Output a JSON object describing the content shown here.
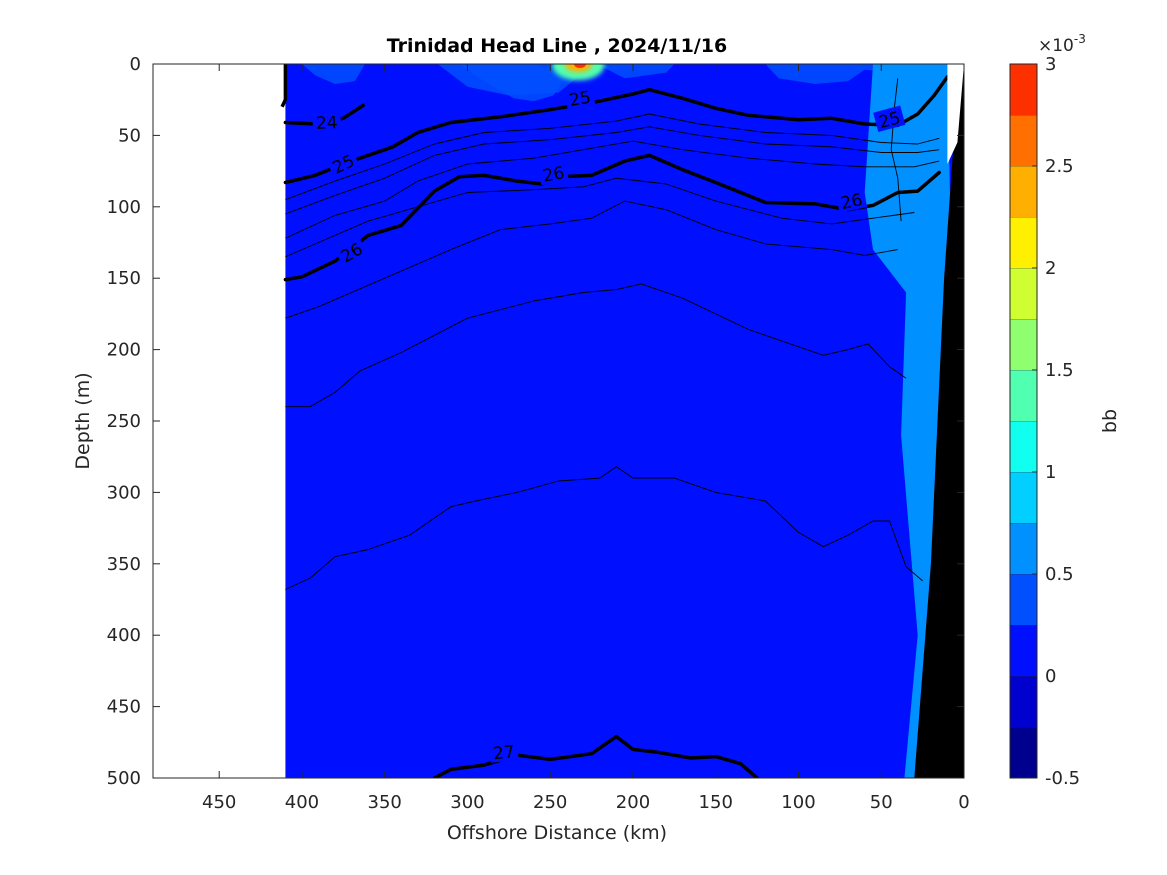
{
  "chart_data": {
    "type": "heatmap",
    "subtype": "filled-contour section with density contour overlay",
    "title": "Trinidad Head Line , 2024/11/16",
    "xlabel": "Offshore Distance (km)",
    "ylabel": "Depth (m)",
    "xlim": [
      490,
      0
    ],
    "x_reversed": true,
    "ylim": [
      0,
      500
    ],
    "y_reversed": true,
    "xticks": [
      "450",
      "400",
      "350",
      "300",
      "250",
      "200",
      "150",
      "100",
      "50",
      "0"
    ],
    "yticks": [
      "0",
      "50",
      "100",
      "150",
      "200",
      "250",
      "300",
      "350",
      "400",
      "450",
      "500"
    ],
    "grid": false,
    "colorbar": {
      "label": "bb",
      "exponent_label": "×10",
      "exponent_power": "-3",
      "scale": 0.001,
      "range": [
        -0.5,
        3
      ],
      "ticks": [
        "-0.5",
        "0",
        "0.5",
        "1",
        "1.5",
        "2",
        "2.5",
        "3"
      ],
      "levels": [
        -0.5,
        -0.25,
        0,
        0.25,
        0.5,
        0.75,
        1,
        1.25,
        1.5,
        1.75,
        2,
        2.25,
        2.5,
        2.75,
        3
      ],
      "colors": [
        "#00008f",
        "#0000cf",
        "#0010ff",
        "#0050ff",
        "#0090ff",
        "#00cfff",
        "#10ffef",
        "#50ffaf",
        "#90ff6f",
        "#cfff30",
        "#ffef00",
        "#ffaf00",
        "#ff7000",
        "#ff3000",
        "#ef0000",
        "#af0000"
      ]
    },
    "data_extent_km": [
      0,
      410
    ],
    "field_regions": [
      {
        "label": "background",
        "value_range": [
          0,
          0.25
        ]
      },
      {
        "label": "near-surface patches",
        "value_range": [
          0.25,
          0.5
        ]
      },
      {
        "label": "inshore band",
        "value_range": [
          0.5,
          0.75
        ]
      },
      {
        "label": "surface maximum near 230 km",
        "value_range": [
          2,
          2.5
        ]
      }
    ],
    "contours": [
      {
        "label": "24",
        "bold": true,
        "points": [
          [
            410,
            41
          ],
          [
            392,
            42
          ],
          [
            375,
            38
          ],
          [
            363,
            29
          ]
        ]
      },
      {
        "label": "25",
        "bold": true,
        "points": [
          [
            410,
            83
          ],
          [
            392,
            78
          ],
          [
            375,
            70
          ],
          [
            360,
            64
          ],
          [
            345,
            58
          ],
          [
            330,
            48
          ],
          [
            310,
            41
          ],
          [
            280,
            37
          ],
          [
            250,
            32
          ],
          [
            220,
            26
          ],
          [
            200,
            21
          ],
          [
            190,
            18
          ],
          [
            170,
            24
          ],
          [
            150,
            31
          ],
          [
            130,
            36
          ],
          [
            100,
            39
          ],
          [
            80,
            38
          ],
          [
            60,
            42
          ],
          [
            40,
            43
          ],
          [
            28,
            35
          ],
          [
            18,
            22
          ],
          [
            10,
            9
          ]
        ]
      },
      {
        "label": "26",
        "bold": true,
        "points": [
          [
            410,
            151
          ],
          [
            400,
            149
          ],
          [
            380,
            138
          ],
          [
            360,
            120
          ],
          [
            340,
            113
          ],
          [
            320,
            89
          ],
          [
            305,
            79
          ],
          [
            290,
            78
          ],
          [
            270,
            82
          ],
          [
            255,
            84
          ],
          [
            245,
            79
          ],
          [
            225,
            78
          ],
          [
            205,
            68
          ],
          [
            190,
            64
          ],
          [
            170,
            74
          ],
          [
            150,
            83
          ],
          [
            120,
            97
          ],
          [
            90,
            98
          ],
          [
            70,
            102
          ],
          [
            55,
            99
          ],
          [
            40,
            90
          ],
          [
            28,
            89
          ],
          [
            15,
            76
          ]
        ]
      },
      {
        "label": "27",
        "bold": true,
        "points": [
          [
            320,
            500
          ],
          [
            310,
            494
          ],
          [
            290,
            491
          ],
          [
            270,
            484
          ],
          [
            250,
            487
          ],
          [
            225,
            483
          ],
          [
            210,
            471
          ],
          [
            200,
            480
          ],
          [
            185,
            482
          ],
          [
            165,
            486
          ],
          [
            150,
            485
          ],
          [
            135,
            490
          ],
          [
            125,
            500
          ]
        ]
      }
    ],
    "bathymetry": {
      "label": "seafloor",
      "color": "#000000",
      "points": [
        [
          0,
          0
        ],
        [
          0,
          500
        ],
        [
          30,
          500
        ],
        [
          20,
          350
        ],
        [
          12,
          150
        ],
        [
          6,
          50
        ],
        [
          0,
          0
        ]
      ]
    }
  }
}
